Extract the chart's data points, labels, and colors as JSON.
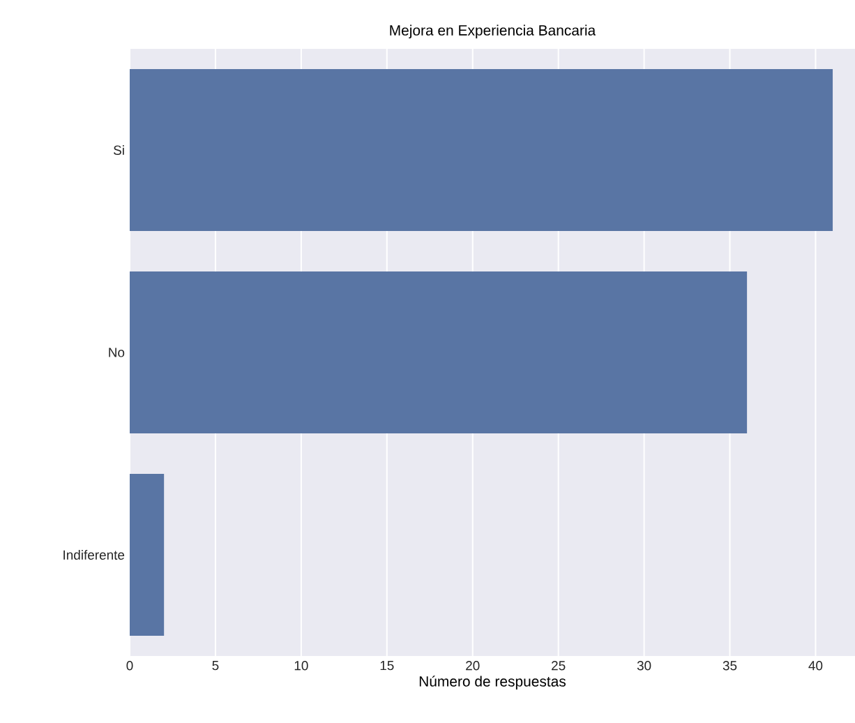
{
  "chart_data": {
    "type": "bar",
    "orientation": "horizontal",
    "title": "Mejora en Experiencia Bancaria",
    "xlabel": "Número de respuestas",
    "categories": [
      "Si",
      "No",
      "Indiferente"
    ],
    "values": [
      41,
      36,
      2
    ],
    "color": "#5975a4",
    "xlim": [
      0,
      42.3
    ],
    "xticks": [
      0,
      5,
      10,
      15,
      20,
      25,
      30,
      35,
      40
    ],
    "grid": "x"
  }
}
